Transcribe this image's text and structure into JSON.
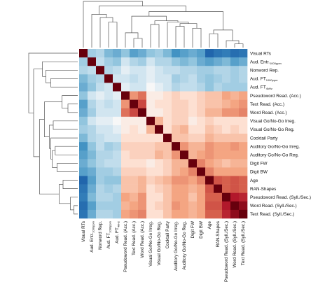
{
  "chart_data": {
    "type": "heatmap",
    "title": "",
    "variables": [
      {
        "label": "Visual RTs",
        "sub": ""
      },
      {
        "label": "Aud. Entr.",
        "sub": "1000ppm"
      },
      {
        "label": "Nonword Rep.",
        "sub": ""
      },
      {
        "label": "Aud. FT",
        "sub": "1000ppm"
      },
      {
        "label": "Aud. FT",
        "sub": "4kHz"
      },
      {
        "label": "Pseudoword Read. (Acc.)",
        "sub": ""
      },
      {
        "label": "Text Read. (Acc.)",
        "sub": ""
      },
      {
        "label": "Word Read. (Acc.)",
        "sub": ""
      },
      {
        "label": "Visual Go/No-Go Irreg.",
        "sub": ""
      },
      {
        "label": "Visual Go/No-Go Reg.",
        "sub": ""
      },
      {
        "label": "Cocktail Party",
        "sub": ""
      },
      {
        "label": "Auditory Go/No-Go Irreg.",
        "sub": ""
      },
      {
        "label": "Auditory Go/No-Go Reg.",
        "sub": ""
      },
      {
        "label": "Digit FW",
        "sub": ""
      },
      {
        "label": "Digit BW",
        "sub": ""
      },
      {
        "label": "Age",
        "sub": ""
      },
      {
        "label": "RAN-Shapes",
        "sub": ""
      },
      {
        "label": "Pseudoword Read. (Syll./Sec.)",
        "sub": ""
      },
      {
        "label": "Word Read. (Syll./Sec.)",
        "sub": ""
      },
      {
        "label": "Text Read. (Syll./Sec.)",
        "sub": ""
      }
    ],
    "value_range": [
      -1,
      1
    ],
    "colormap": "RdBu_r",
    "correlation_matrix": [
      [
        1.0,
        -0.25,
        -0.2,
        -0.35,
        -0.4,
        -0.3,
        -0.45,
        -0.4,
        -0.3,
        -0.25,
        -0.35,
        -0.5,
        -0.45,
        -0.4,
        -0.45,
        -0.8,
        -0.7,
        -0.65,
        -0.75,
        -0.7
      ],
      [
        -0.25,
        1.0,
        -0.15,
        -0.25,
        -0.3,
        -0.1,
        -0.2,
        -0.25,
        -0.1,
        -0.2,
        -0.2,
        -0.3,
        -0.35,
        -0.3,
        -0.4,
        -0.45,
        -0.4,
        -0.35,
        -0.45,
        -0.4
      ],
      [
        -0.2,
        -0.15,
        1.0,
        -0.2,
        -0.15,
        -0.05,
        -0.1,
        -0.1,
        -0.05,
        -0.1,
        -0.15,
        -0.15,
        -0.2,
        -0.2,
        -0.25,
        -0.25,
        -0.2,
        -0.2,
        -0.25,
        -0.2
      ],
      [
        -0.35,
        -0.25,
        -0.2,
        1.0,
        -0.1,
        -0.1,
        -0.15,
        -0.1,
        -0.05,
        -0.1,
        -0.1,
        -0.25,
        -0.2,
        -0.15,
        -0.25,
        -0.3,
        -0.25,
        -0.2,
        -0.25,
        -0.2
      ],
      [
        -0.4,
        -0.3,
        -0.15,
        -0.1,
        1.0,
        -0.05,
        -0.1,
        -0.1,
        0.0,
        -0.05,
        -0.1,
        -0.2,
        -0.15,
        -0.15,
        -0.2,
        -0.3,
        -0.2,
        -0.25,
        -0.25,
        -0.25
      ],
      [
        -0.3,
        -0.1,
        -0.05,
        -0.1,
        -0.05,
        1.0,
        0.35,
        0.45,
        0.05,
        0.05,
        0.1,
        0.15,
        0.1,
        0.1,
        0.15,
        0.2,
        0.2,
        0.3,
        0.25,
        0.3
      ],
      [
        -0.45,
        -0.2,
        -0.1,
        -0.15,
        -0.1,
        0.35,
        1.0,
        0.6,
        0.05,
        0.1,
        0.1,
        0.15,
        0.15,
        0.1,
        0.15,
        0.2,
        0.2,
        0.25,
        0.3,
        0.35
      ],
      [
        -0.4,
        -0.25,
        -0.1,
        -0.1,
        -0.1,
        0.45,
        0.6,
        1.0,
        0.05,
        0.05,
        0.1,
        0.15,
        0.15,
        0.1,
        0.15,
        0.25,
        0.25,
        0.35,
        0.35,
        0.4
      ],
      [
        -0.3,
        -0.1,
        -0.05,
        -0.05,
        0.0,
        0.05,
        0.05,
        0.05,
        1.0,
        0.25,
        0.1,
        0.15,
        0.15,
        0.05,
        0.1,
        0.15,
        0.1,
        0.1,
        0.1,
        0.1
      ],
      [
        -0.25,
        -0.2,
        -0.1,
        -0.1,
        -0.05,
        0.05,
        0.1,
        0.05,
        0.25,
        1.0,
        0.1,
        0.2,
        0.25,
        0.1,
        0.1,
        0.2,
        0.15,
        0.1,
        0.15,
        0.1
      ],
      [
        -0.35,
        -0.2,
        -0.15,
        -0.1,
        -0.1,
        0.1,
        0.1,
        0.1,
        0.1,
        0.1,
        1.0,
        0.2,
        0.2,
        0.15,
        0.15,
        0.25,
        0.2,
        0.2,
        0.2,
        0.2
      ],
      [
        -0.5,
        -0.3,
        -0.15,
        -0.25,
        -0.2,
        0.15,
        0.15,
        0.15,
        0.15,
        0.2,
        0.2,
        1.0,
        0.35,
        0.25,
        0.25,
        0.35,
        0.3,
        0.3,
        0.35,
        0.3
      ],
      [
        -0.45,
        -0.35,
        -0.2,
        -0.2,
        -0.15,
        0.1,
        0.15,
        0.15,
        0.15,
        0.25,
        0.2,
        0.35,
        1.0,
        0.25,
        0.3,
        0.35,
        0.3,
        0.3,
        0.3,
        0.3
      ],
      [
        -0.4,
        -0.3,
        -0.2,
        -0.15,
        -0.15,
        0.1,
        0.1,
        0.1,
        0.05,
        0.1,
        0.15,
        0.25,
        0.25,
        1.0,
        0.4,
        0.3,
        0.25,
        0.2,
        0.25,
        0.25
      ],
      [
        -0.45,
        -0.4,
        -0.25,
        -0.25,
        -0.2,
        0.15,
        0.15,
        0.15,
        0.1,
        0.1,
        0.15,
        0.25,
        0.3,
        0.4,
        1.0,
        0.4,
        0.3,
        0.3,
        0.3,
        0.3
      ],
      [
        -0.8,
        -0.45,
        -0.25,
        -0.3,
        -0.3,
        0.2,
        0.2,
        0.25,
        0.15,
        0.2,
        0.25,
        0.35,
        0.35,
        0.3,
        0.4,
        1.0,
        0.55,
        0.5,
        0.55,
        0.5
      ],
      [
        -0.7,
        -0.4,
        -0.2,
        -0.25,
        -0.2,
        0.2,
        0.2,
        0.25,
        0.1,
        0.15,
        0.2,
        0.3,
        0.3,
        0.25,
        0.3,
        0.55,
        1.0,
        0.5,
        0.55,
        0.5
      ],
      [
        -0.65,
        -0.35,
        -0.2,
        -0.2,
        -0.25,
        0.3,
        0.25,
        0.35,
        0.1,
        0.1,
        0.2,
        0.3,
        0.3,
        0.2,
        0.3,
        0.5,
        0.5,
        1.0,
        0.8,
        0.75
      ],
      [
        -0.75,
        -0.45,
        -0.25,
        -0.25,
        -0.25,
        0.25,
        0.3,
        0.35,
        0.1,
        0.15,
        0.2,
        0.35,
        0.3,
        0.25,
        0.3,
        0.55,
        0.55,
        0.8,
        1.0,
        0.9
      ],
      [
        -0.7,
        -0.4,
        -0.2,
        -0.2,
        -0.25,
        0.3,
        0.35,
        0.4,
        0.1,
        0.1,
        0.2,
        0.3,
        0.3,
        0.25,
        0.3,
        0.5,
        0.5,
        0.75,
        0.9,
        1.0
      ]
    ],
    "dendrogram": {
      "leaf_order": [
        0,
        1,
        2,
        3,
        4,
        5,
        6,
        7,
        8,
        9,
        10,
        11,
        12,
        13,
        14,
        15,
        16,
        17,
        18,
        19
      ],
      "merges": [
        {
          "a": 18,
          "b": 19,
          "h": 0.08
        },
        {
          "a": 17,
          "b": "m0",
          "h": 0.15
        },
        {
          "a": 6,
          "b": 7,
          "h": 0.2
        },
        {
          "a": 15,
          "b": 16,
          "h": 0.3
        },
        {
          "a": 5,
          "b": "m2",
          "h": 0.32
        },
        {
          "a": "m3",
          "b": "m1",
          "h": 0.38
        },
        {
          "a": 13,
          "b": 14,
          "h": 0.42
        },
        {
          "a": 11,
          "b": 12,
          "h": 0.46
        },
        {
          "a": 8,
          "b": 9,
          "h": 0.5
        },
        {
          "a": "m7",
          "b": "m6",
          "h": 0.52
        },
        {
          "a": 10,
          "b": "m9",
          "h": 0.55
        },
        {
          "a": "m8",
          "b": "m10",
          "h": 0.58
        },
        {
          "a": 3,
          "b": 4,
          "h": 0.55
        },
        {
          "a": 2,
          "b": "m12",
          "h": 0.65
        },
        {
          "a": 1,
          "b": "m13",
          "h": 0.72
        },
        {
          "a": "m4",
          "b": "m11",
          "h": 0.68
        },
        {
          "a": "m15",
          "b": "m5",
          "h": 0.78
        },
        {
          "a": "m14",
          "b": "m16",
          "h": 0.9
        },
        {
          "a": 0,
          "b": "m17",
          "h": 1.0
        }
      ]
    }
  }
}
